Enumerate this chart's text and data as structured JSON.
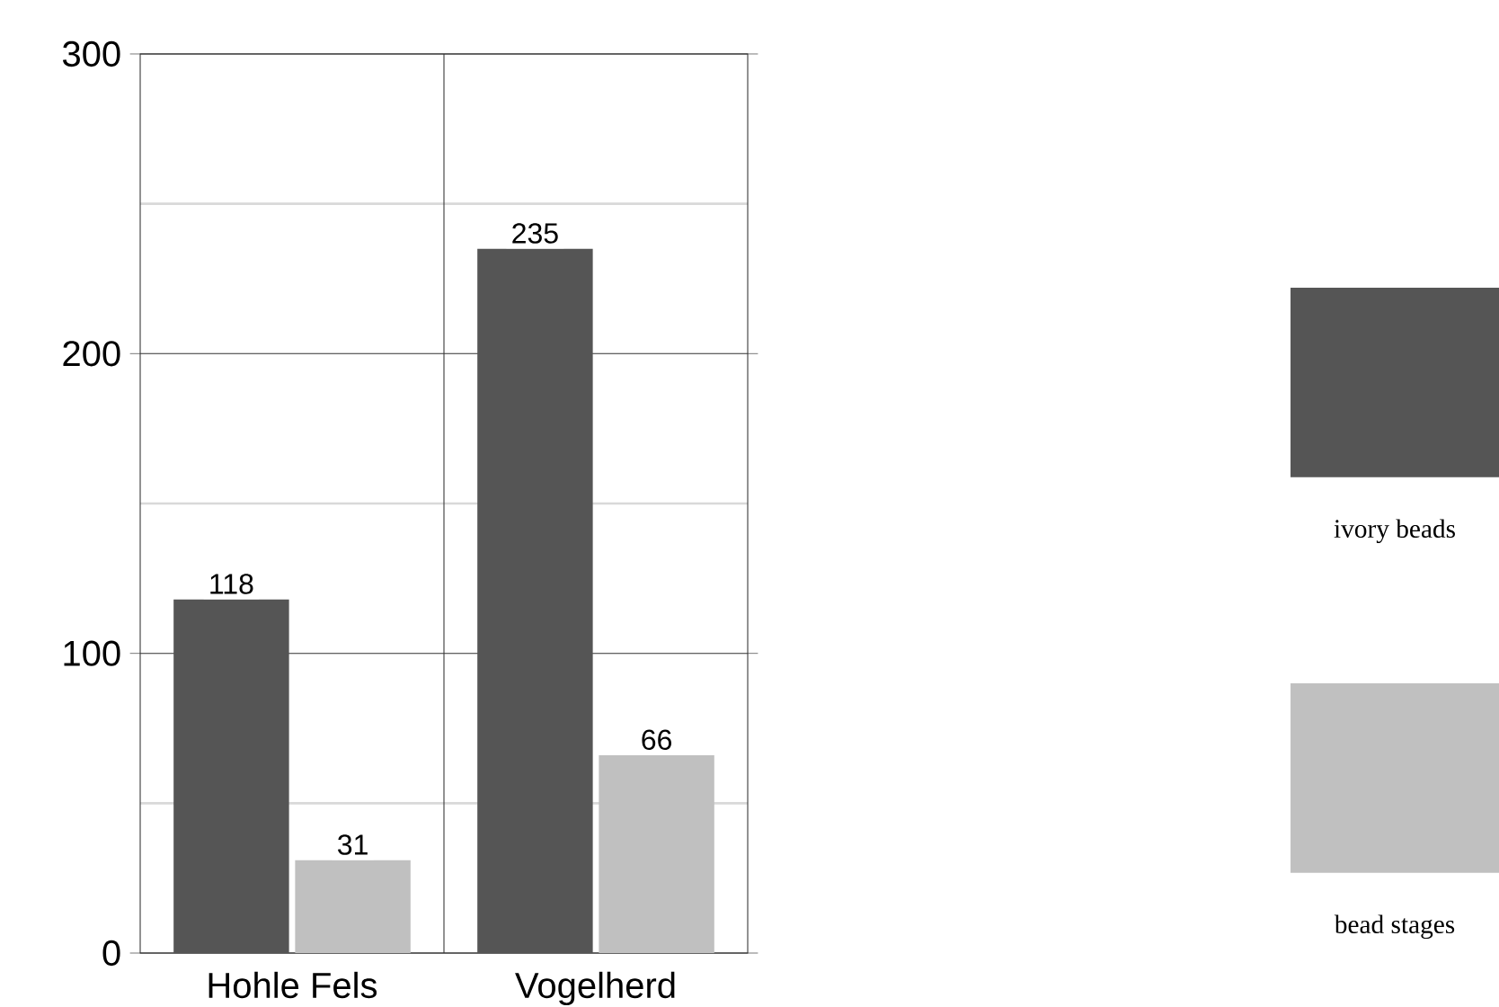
{
  "chart_data": {
    "type": "bar",
    "categories": [
      "Hohle Fels",
      "Vogelherd"
    ],
    "series": [
      {
        "name": "ivory beads",
        "color": "#555555",
        "values": [
          118,
          235
        ]
      },
      {
        "name": "bead stages",
        "color": "#c0c0c0",
        "values": [
          31,
          66
        ]
      }
    ],
    "ylim": [
      0,
      300
    ],
    "yticks": [
      0,
      100,
      200,
      300
    ],
    "grid": true,
    "data_labels": true,
    "legend": "right"
  }
}
